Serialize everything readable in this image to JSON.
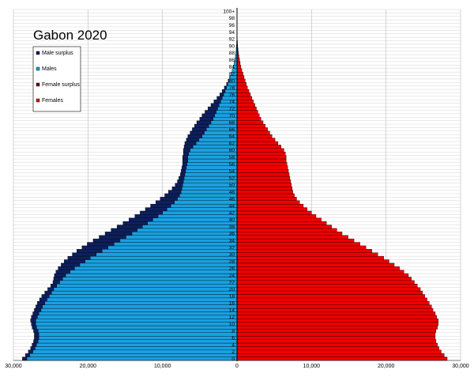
{
  "chart_data": {
    "type": "bar",
    "orientation": "horizontal",
    "title": "Gabon 2020",
    "xlim": [
      -30000,
      30000
    ],
    "x_tick_values": [
      -30000,
      -20000,
      -10000,
      0,
      10000,
      20000,
      30000
    ],
    "x_tick_labels": [
      "30,000",
      "20,000",
      "10,000",
      "0",
      "10,000",
      "20,000",
      "30,000"
    ],
    "age_labels": [
      "0",
      "2",
      "4",
      "6",
      "8",
      "10",
      "12",
      "14",
      "16",
      "18",
      "20",
      "22",
      "24",
      "26",
      "28",
      "30",
      "32",
      "34",
      "36",
      "38",
      "40",
      "42",
      "44",
      "46",
      "48",
      "50",
      "52",
      "54",
      "56",
      "58",
      "60",
      "62",
      "64",
      "66",
      "68",
      "70",
      "72",
      "74",
      "76",
      "78",
      "80",
      "82",
      "84",
      "86",
      "88",
      "90",
      "92",
      "94",
      "96",
      "98",
      "100+"
    ],
    "legend": {
      "placement": "top-left",
      "entries": [
        {
          "label": "Male surplus",
          "color": "#0d1f5c"
        },
        {
          "label": "Males",
          "color": "#1aa0e0"
        },
        {
          "label": "Female surplus",
          "color": "#6b0a0a"
        },
        {
          "label": "Females",
          "color": "#ee0000"
        }
      ]
    },
    "colors": {
      "male_surplus": "#0d1f5c",
      "males": "#1aa0e0",
      "female_surplus": "#6b0a0a",
      "females": "#ee0000"
    },
    "series": [
      {
        "name": "Males",
        "values": [
          28800,
          28400,
          28000,
          27700,
          27500,
          27300,
          27200,
          27200,
          27300,
          27500,
          27600,
          27700,
          27600,
          27400,
          27200,
          27000,
          26800,
          26500,
          26200,
          25800,
          25400,
          25000,
          24700,
          24600,
          24500,
          24300,
          24000,
          23600,
          23200,
          22700,
          22100,
          21500,
          20800,
          20100,
          19300,
          18500,
          17700,
          16900,
          16100,
          15300,
          14500,
          13700,
          13000,
          12300,
          11600,
          10900,
          10300,
          9700,
          9200,
          8700,
          8300,
          8000,
          7800,
          7600,
          7500,
          7400,
          7300,
          7300,
          7300,
          7200,
          7200,
          7100,
          7000,
          6800,
          6600,
          6300,
          6000,
          5700,
          5400,
          5000,
          4700,
          4300,
          3900,
          3500,
          3100,
          2700,
          2300,
          2000,
          1700,
          1400,
          1200,
          1000,
          800,
          650,
          520,
          400,
          300,
          220,
          160,
          110,
          70,
          50,
          30,
          20,
          10,
          6,
          4,
          2,
          1,
          1,
          0
        ]
      },
      {
        "name": "Females",
        "values": [
          28200,
          27800,
          27400,
          27100,
          26900,
          26700,
          26600,
          26600,
          26700,
          26900,
          27000,
          27000,
          26800,
          26600,
          26300,
          26100,
          25800,
          25500,
          25200,
          24900,
          24600,
          24200,
          23800,
          23400,
          23000,
          22400,
          21800,
          21100,
          20400,
          19700,
          18900,
          18100,
          17300,
          16500,
          15700,
          14900,
          14100,
          13400,
          12700,
          12000,
          11300,
          10600,
          10000,
          9400,
          8900,
          8400,
          8000,
          7700,
          7500,
          7400,
          7300,
          7200,
          7100,
          7000,
          6900,
          6800,
          6700,
          6600,
          6600,
          6500,
          6300,
          5900,
          5500,
          5100,
          4700,
          4400,
          4100,
          3800,
          3500,
          3200,
          3000,
          2800,
          2600,
          2400,
          2200,
          2000,
          1800,
          1600,
          1400,
          1250,
          1100,
          950,
          800,
          650,
          520,
          420,
          330,
          250,
          180,
          130,
          90,
          60,
          40,
          25,
          15,
          9,
          5,
          3,
          2,
          1,
          1
        ]
      }
    ]
  }
}
